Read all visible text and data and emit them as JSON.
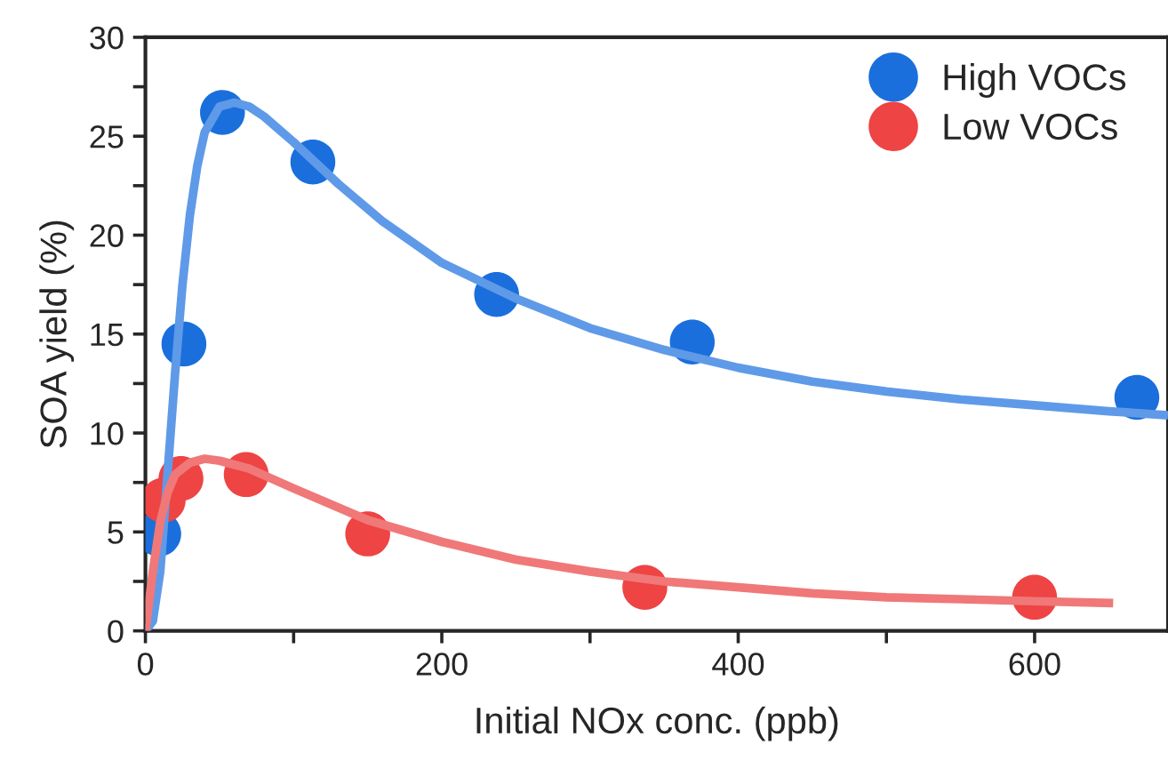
{
  "chart_data": {
    "type": "scatter",
    "xlabel": "Initial NOx conc. (ppb)",
    "ylabel": "SOA yield (%)",
    "xlim": [
      0,
      690
    ],
    "ylim": [
      0,
      30
    ],
    "xticks": [
      0,
      {
        "value": 100,
        "label": null
      },
      200,
      {
        "value": 300,
        "label": null
      },
      400,
      {
        "value": 500,
        "label": null
      },
      600
    ],
    "yticks": [
      0,
      {
        "value": 2.5,
        "label": null
      },
      5,
      {
        "value": 7.5,
        "label": null
      },
      10,
      {
        "value": 12.5,
        "label": null
      },
      15,
      {
        "value": 17.5,
        "label": null
      },
      20,
      {
        "value": 22.5,
        "label": null
      },
      25,
      {
        "value": 27.5,
        "label": null
      },
      30
    ],
    "grid": false,
    "legend": "top right",
    "marker": "circle",
    "series": [
      {
        "name": "High VOCs",
        "color": "#1a6fdc",
        "x": [
          9,
          26,
          52,
          113,
          237,
          369,
          669
        ],
        "values": [
          4.9,
          14.5,
          26.2,
          23.7,
          17.0,
          14.6,
          11.8
        ]
      },
      {
        "name": "Low VOCs",
        "color": "#ee4444",
        "x": [
          12,
          24,
          68,
          150,
          337,
          600
        ],
        "values": [
          6.6,
          7.7,
          7.9,
          4.9,
          2.2,
          1.7
        ]
      },
      {
        "type": "line",
        "color": "#5f9ae8",
        "line_style": "solid",
        "marker": "none",
        "x": [
          0,
          5,
          10,
          15,
          20,
          25,
          30,
          35,
          40,
          50,
          60,
          70,
          80,
          100,
          130,
          160,
          200,
          250,
          300,
          350,
          400,
          450,
          500,
          550,
          600,
          650,
          690
        ],
        "values": [
          0,
          0.5,
          3,
          8,
          13,
          17.5,
          21,
          23.5,
          25.2,
          26.5,
          26.7,
          26.5,
          26,
          24.7,
          22.6,
          20.7,
          18.6,
          16.8,
          15.3,
          14.2,
          13.3,
          12.6,
          12.1,
          11.7,
          11.4,
          11.1,
          10.9
        ]
      },
      {
        "type": "line",
        "color": "#f07878",
        "line_style": "solid",
        "marker": "none",
        "x": [
          0,
          5,
          10,
          15,
          20,
          30,
          40,
          50,
          70,
          100,
          150,
          200,
          250,
          300,
          350,
          400,
          450,
          500,
          550,
          600,
          653
        ],
        "values": [
          0,
          3,
          5.5,
          7,
          7.9,
          8.5,
          8.7,
          8.6,
          8.2,
          7.2,
          5.6,
          4.5,
          3.6,
          3.0,
          2.5,
          2.2,
          1.9,
          1.7,
          1.6,
          1.5,
          1.4
        ]
      }
    ]
  }
}
